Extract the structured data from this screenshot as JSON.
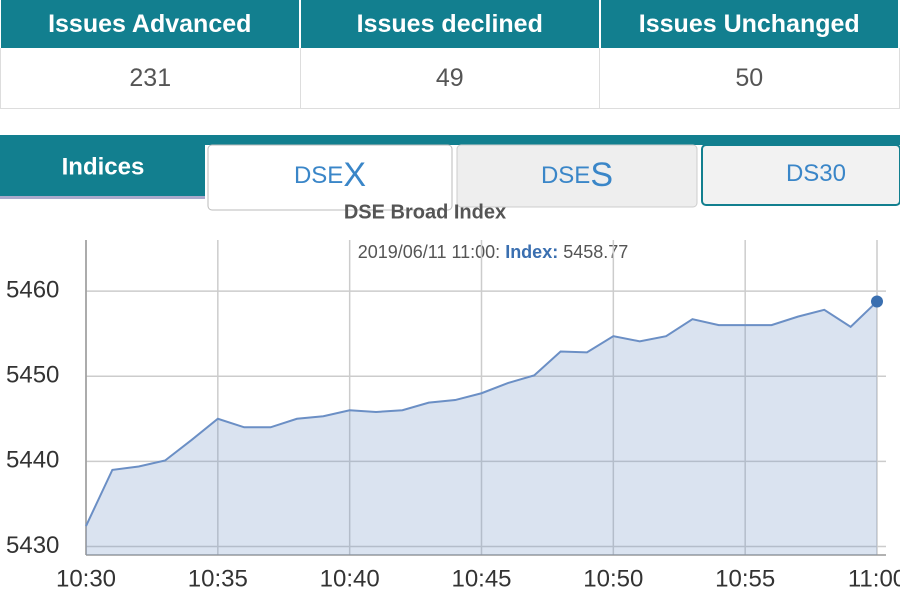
{
  "table": {
    "headers": [
      "Issues Advanced",
      "Issues declined",
      "Issues Unchanged"
    ],
    "rows": [
      [
        "231",
        "49",
        "50"
      ]
    ]
  },
  "tabs": {
    "label": "Indices",
    "items": [
      {
        "prefix": "DSE",
        "suffix": "X"
      },
      {
        "prefix": "DSE",
        "suffix": "S"
      },
      {
        "prefix": "DS30",
        "suffix": ""
      }
    ]
  },
  "chart_data": {
    "type": "area",
    "title": "DSE Broad Index",
    "tooltip": {
      "time": "2019/06/11 11:00:",
      "label": "Index:",
      "value": 5458.77
    },
    "x": [
      "10:30",
      "10:31",
      "10:32",
      "10:33",
      "10:34",
      "10:35",
      "10:36",
      "10:37",
      "10:38",
      "10:39",
      "10:40",
      "10:41",
      "10:42",
      "10:43",
      "10:44",
      "10:45",
      "10:46",
      "10:47",
      "10:48",
      "10:49",
      "10:50",
      "10:51",
      "10:52",
      "10:53",
      "10:54",
      "10:55",
      "10:56",
      "10:57",
      "10:58",
      "10:59",
      "11:00"
    ],
    "series": [
      {
        "name": "Index",
        "color": "#6b8fc5",
        "values": [
          5432.4,
          5439.0,
          5439.4,
          5440.1,
          5442.5,
          5445.0,
          5444.0,
          5444.0,
          5445.0,
          5445.3,
          5446.0,
          5445.8,
          5446.0,
          5446.9,
          5447.2,
          5448.0,
          5449.2,
          5450.1,
          5452.9,
          5452.8,
          5454.7,
          5454.1,
          5454.7,
          5456.7,
          5456.0,
          5456.0,
          5456.0,
          5457.0,
          5457.8,
          5455.8,
          5458.77
        ]
      }
    ],
    "ylim": [
      5429,
      5466
    ],
    "yticks": [
      5430,
      5440,
      5450,
      5460
    ],
    "xticks": [
      "10:30",
      "10:35",
      "10:40",
      "10:45",
      "10:50",
      "10:55",
      "11:00"
    ],
    "grid": true
  }
}
